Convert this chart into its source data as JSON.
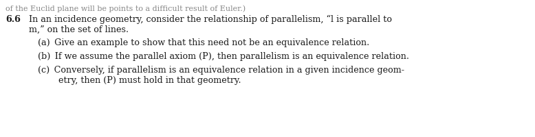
{
  "background_color": "#ffffff",
  "top_text": "of the Euclid plane will be points to a difficult result of Euler.)",
  "problem_number": "6.6",
  "main_line1": "In an incidence geometry, consider the relationship of parallelism, “l is parallel to",
  "main_line2": "m,” on the set of lines.",
  "part_a": "(a) Give an example to show that this need not be an equivalence relation.",
  "part_b": "(b) If we assume the parallel axiom (P), then parallelism is an equivalence relation.",
  "part_c1": "(c) Conversely, if parallelism is an equivalence relation in a given incidence geom-",
  "part_c2": "etry, then (P) must hold in that geometry.",
  "font_size": 9.2,
  "font_size_top": 8.0,
  "text_color": "#1a1a1a",
  "top_color": "#888888"
}
